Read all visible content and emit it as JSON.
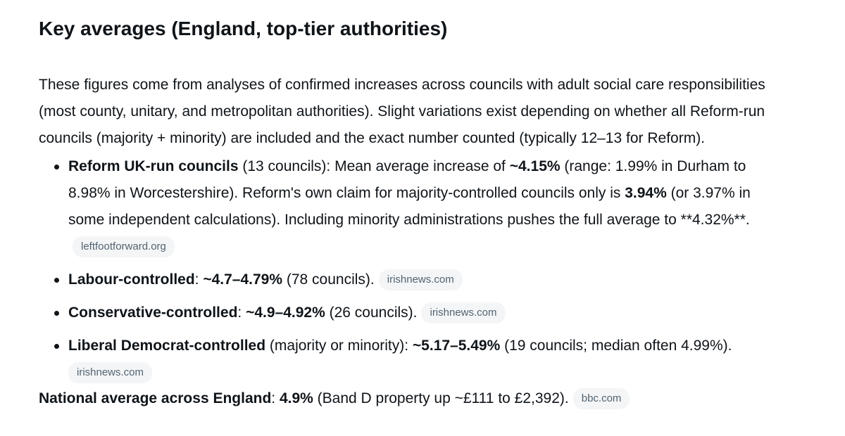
{
  "heading": "Key averages (England, top-tier authorities)",
  "intro": "These figures come from analyses of confirmed increases across councils with adult social care responsibilities (most county, unitary, and metropolitan authorities). Slight variations exist depending on whether all Reform-run councils (majority + minority) are included and the exact number counted (typically 12–13 for Reform).",
  "items": [
    {
      "b1": "Reform UK-run councils",
      "t1": " (13 councils): Mean average increase of ",
      "b2": "~4.15%",
      "t2": " (range: 1.99% in Durham to 8.98% in Worcestershire). Reform's own claim for majority-controlled councils only is ",
      "b3": "3.94%",
      "t3": " (or 3.97% in some independent calculations). Including minority administrations pushes the full average to **4.32%**.",
      "source": "leftfootforward.org"
    },
    {
      "b1": "Labour-controlled",
      "t1": ": ",
      "b2": "~4.7–4.79%",
      "t2": " (78 councils).",
      "source": "irishnews.com"
    },
    {
      "b1": "Conservative-controlled",
      "t1": ": ",
      "b2": "~4.9–4.92%",
      "t2": " (26 councils).",
      "source": "irishnews.com"
    },
    {
      "b1": "Liberal Democrat-controlled",
      "t1": " (majority or minority): ",
      "b2": "~5.17–5.49%",
      "t2": " (19 councils; median often 4.99%).",
      "source": "irishnews.com"
    }
  ],
  "national": {
    "b1": "National average across England",
    "t1": ": ",
    "b2": "4.9%",
    "t2": " (Band D property up ~£111 to £2,392).",
    "source": "bbc.com"
  }
}
